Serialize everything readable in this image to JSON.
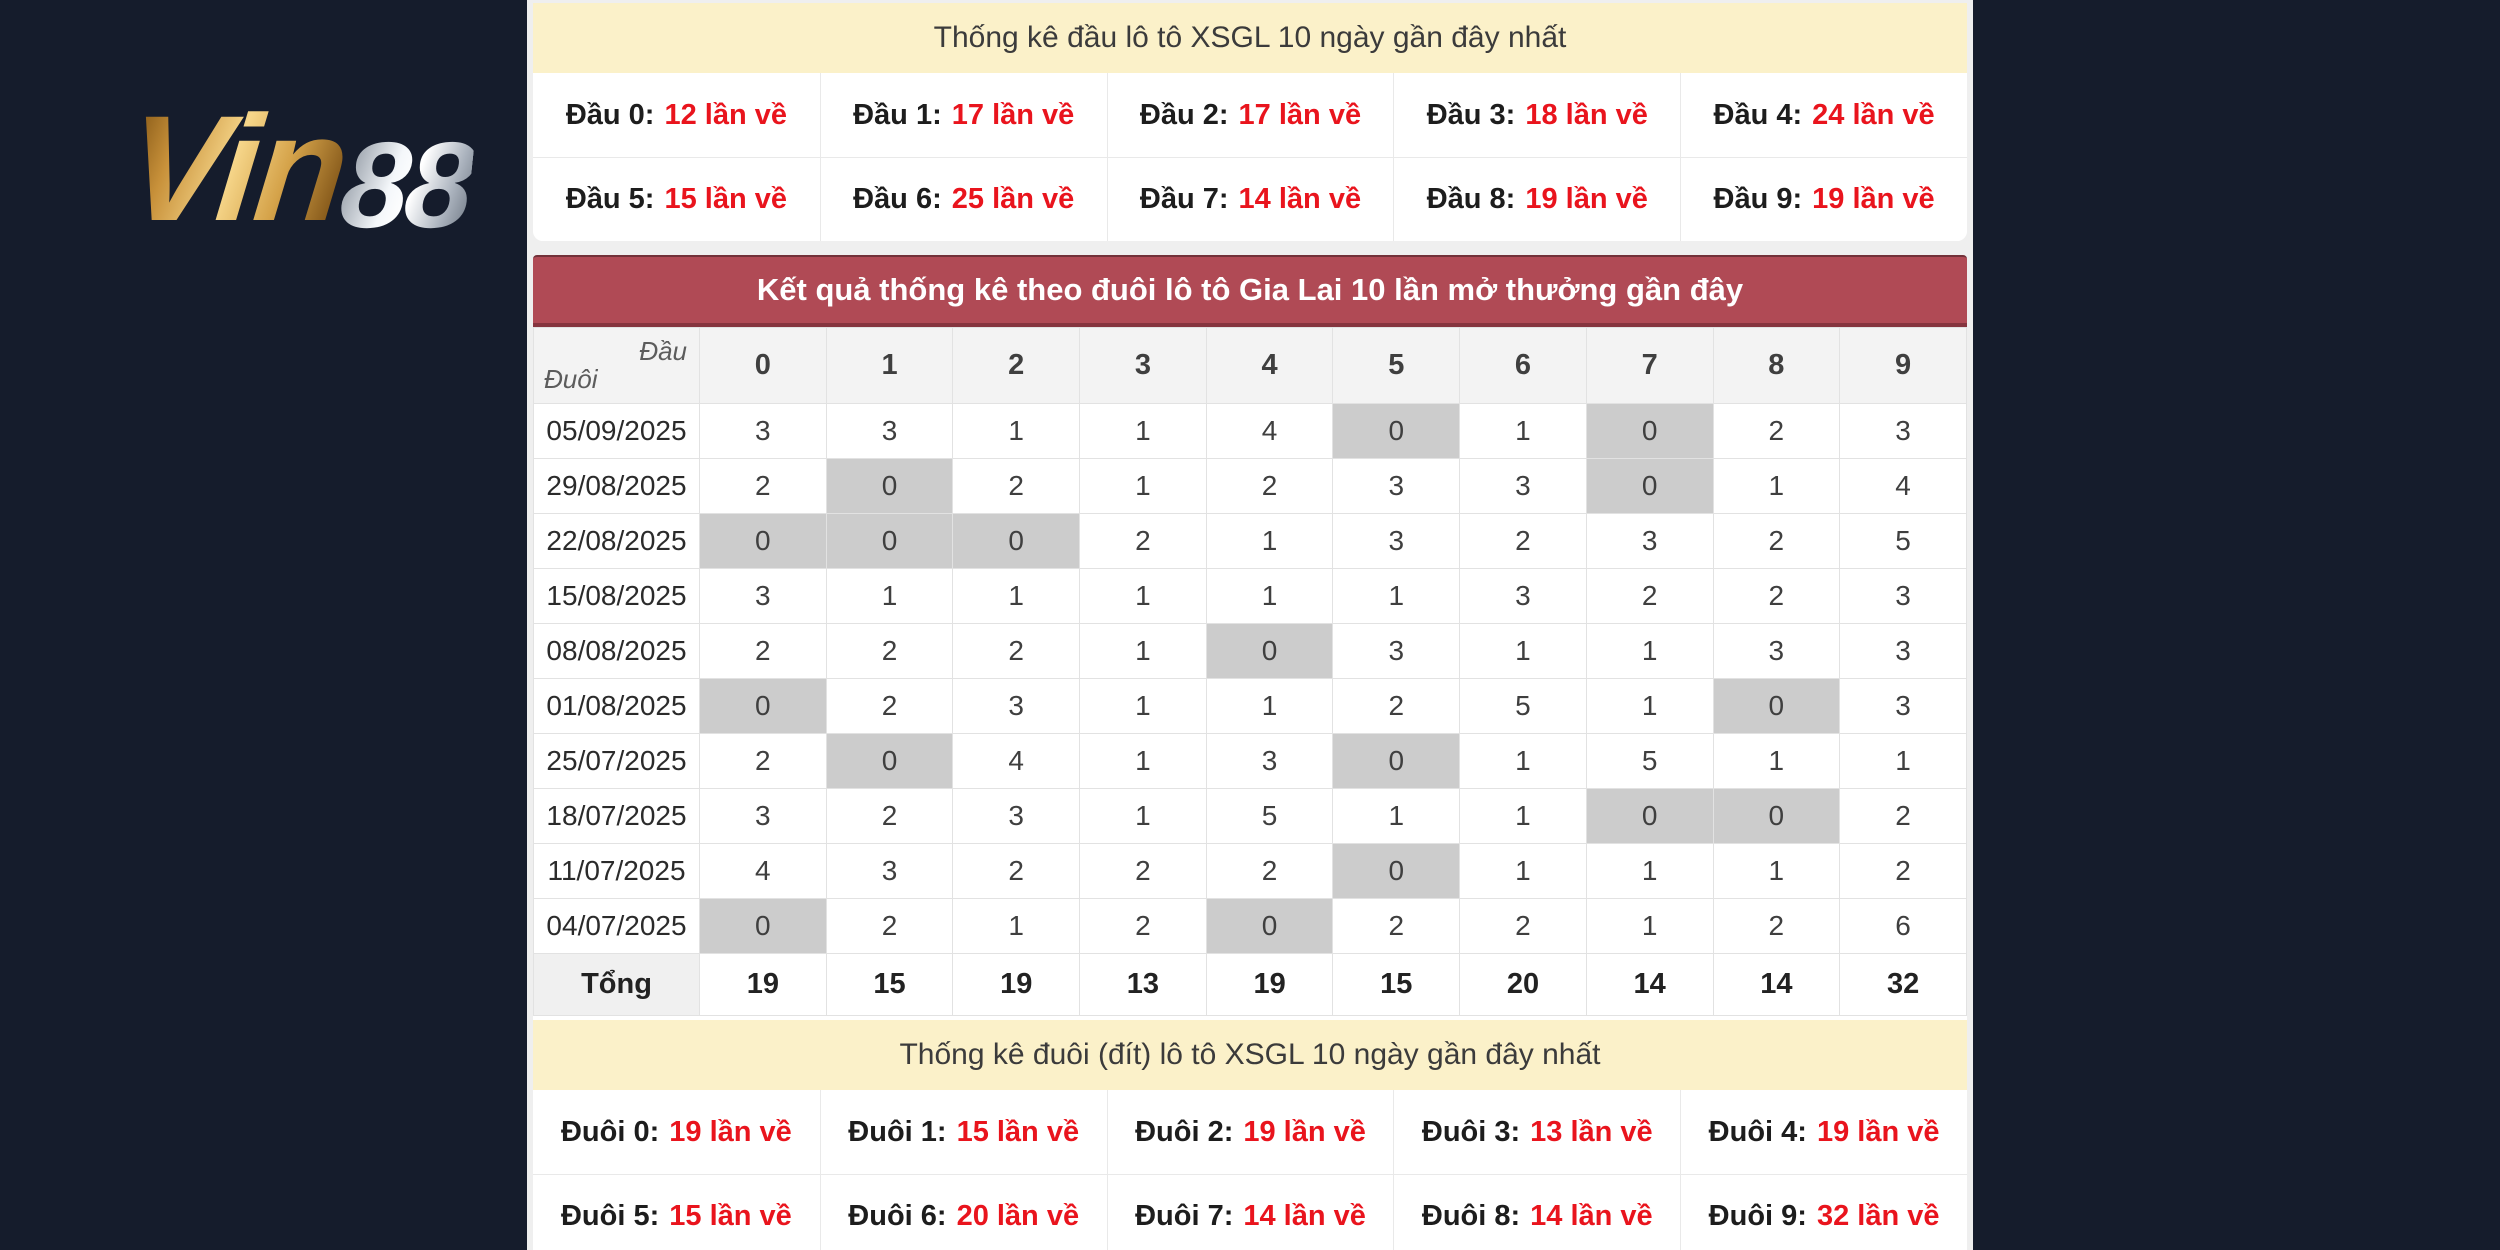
{
  "colors": {
    "page_bg": "#151c2c",
    "panel_bg": "#efefef",
    "cream": "#fbf1c9",
    "banner_red": "#b04a55",
    "accent_red": "#e9141d",
    "zero_cell_gray": "#cccccc"
  },
  "logo": {
    "gold_text": "Vin",
    "silver_text": "88"
  },
  "head_stats": {
    "title": "Thống kê đầu lô tô XSGL 10 ngày gần đây nhất",
    "items": [
      {
        "label": "Đầu 0:",
        "value": "12 lần về"
      },
      {
        "label": "Đầu 1:",
        "value": "17 lần về"
      },
      {
        "label": "Đầu 2:",
        "value": "17 lần về"
      },
      {
        "label": "Đầu 3:",
        "value": "18 lần về"
      },
      {
        "label": "Đầu 4:",
        "value": "24 lần về"
      },
      {
        "label": "Đầu 5:",
        "value": "15 lần về"
      },
      {
        "label": "Đầu 6:",
        "value": "25 lần về"
      },
      {
        "label": "Đầu 7:",
        "value": "14 lần về"
      },
      {
        "label": "Đầu 8:",
        "value": "19 lần về"
      },
      {
        "label": "Đầu 9:",
        "value": "19 lần về"
      }
    ]
  },
  "matrix": {
    "banner_title": "Kết quả thống kê theo đuôi lô tô Gia Lai 10 lần mở thưởng gần đây",
    "corner": {
      "top": "Đầu",
      "bottom": "Đuôi"
    },
    "columns": [
      "0",
      "1",
      "2",
      "3",
      "4",
      "5",
      "6",
      "7",
      "8",
      "9"
    ],
    "rows": [
      {
        "date": "05/09/2025",
        "values": [
          3,
          3,
          1,
          1,
          4,
          0,
          1,
          0,
          2,
          3
        ]
      },
      {
        "date": "29/08/2025",
        "values": [
          2,
          0,
          2,
          1,
          2,
          3,
          3,
          0,
          1,
          4
        ]
      },
      {
        "date": "22/08/2025",
        "values": [
          0,
          0,
          0,
          2,
          1,
          3,
          2,
          3,
          2,
          5
        ]
      },
      {
        "date": "15/08/2025",
        "values": [
          3,
          1,
          1,
          1,
          1,
          1,
          3,
          2,
          2,
          3
        ]
      },
      {
        "date": "08/08/2025",
        "values": [
          2,
          2,
          2,
          1,
          0,
          3,
          1,
          1,
          3,
          3
        ]
      },
      {
        "date": "01/08/2025",
        "values": [
          0,
          2,
          3,
          1,
          1,
          2,
          5,
          1,
          0,
          3
        ]
      },
      {
        "date": "25/07/2025",
        "values": [
          2,
          0,
          4,
          1,
          3,
          0,
          1,
          5,
          1,
          1
        ]
      },
      {
        "date": "18/07/2025",
        "values": [
          3,
          2,
          3,
          1,
          5,
          1,
          1,
          0,
          0,
          2
        ]
      },
      {
        "date": "11/07/2025",
        "values": [
          4,
          3,
          2,
          2,
          2,
          0,
          1,
          1,
          1,
          2
        ]
      },
      {
        "date": "04/07/2025",
        "values": [
          0,
          2,
          1,
          2,
          0,
          2,
          2,
          1,
          2,
          6
        ]
      }
    ],
    "total": {
      "label": "Tổng",
      "values": [
        19,
        15,
        19,
        13,
        19,
        15,
        20,
        14,
        14,
        32
      ]
    }
  },
  "tail_stats": {
    "title": "Thống kê đuôi (đít) lô tô XSGL 10 ngày gần đây nhất",
    "items": [
      {
        "label": "Đuôi 0:",
        "value": "19 lần về"
      },
      {
        "label": "Đuôi 1:",
        "value": "15 lần về"
      },
      {
        "label": "Đuôi 2:",
        "value": "19 lần về"
      },
      {
        "label": "Đuôi 3:",
        "value": "13 lần về"
      },
      {
        "label": "Đuôi 4:",
        "value": "19 lần về"
      },
      {
        "label": "Đuôi 5:",
        "value": "15 lần về"
      },
      {
        "label": "Đuôi 6:",
        "value": "20 lần về"
      },
      {
        "label": "Đuôi 7:",
        "value": "14 lần về"
      },
      {
        "label": "Đuôi 8:",
        "value": "14 lần về"
      },
      {
        "label": "Đuôi 9:",
        "value": "32 lần về"
      }
    ]
  }
}
